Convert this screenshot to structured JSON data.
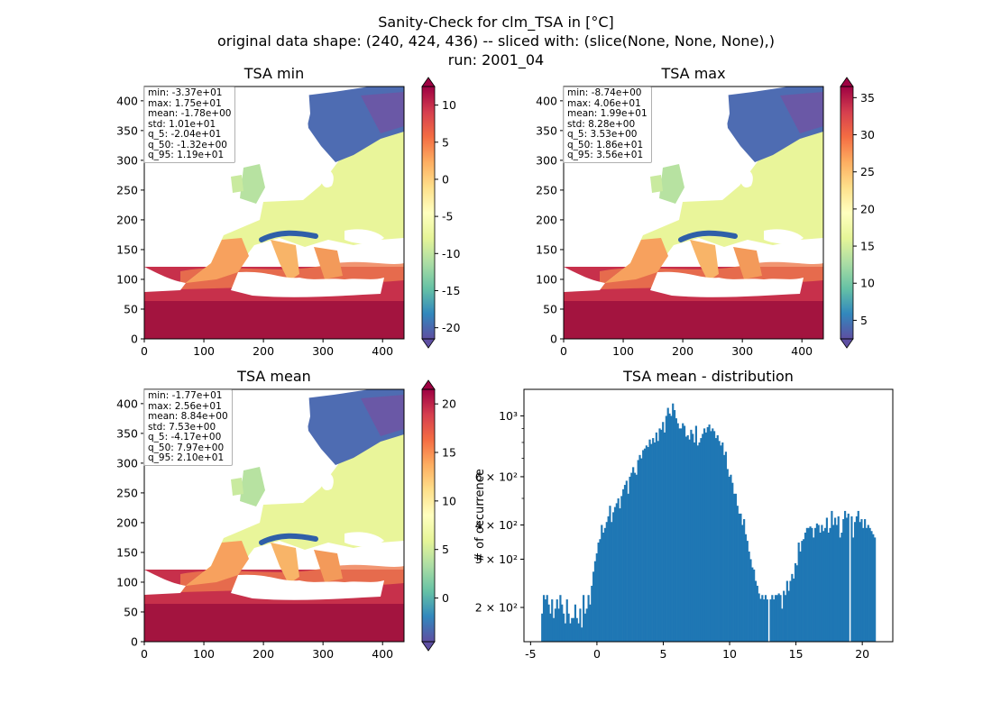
{
  "suptitle": {
    "line1": "Sanity-Check for clm_TSA in [°C]",
    "line2": "original data shape: (240, 424, 436) -- sliced with: (slice(None, None, None),)",
    "line3": "run: 2001_04"
  },
  "colormap": "Spectral_r",
  "chart_data": [
    {
      "type": "heatmap",
      "title": "TSA min",
      "xlim": [
        0,
        436
      ],
      "ylim": [
        0,
        424
      ],
      "xticks": [
        "0",
        "100",
        "200",
        "300",
        "400"
      ],
      "yticks": [
        "0",
        "50",
        "100",
        "150",
        "200",
        "250",
        "300",
        "350",
        "400"
      ],
      "colorbar": {
        "range": [
          -21.5,
          12.5
        ],
        "ticks": [
          "-20",
          "-15",
          "-10",
          "-5",
          "0",
          "5",
          "10"
        ]
      },
      "stats": [
        "min: -3.37e+01",
        "max: 1.75e+01",
        "mean: -1.78e+00",
        "std: 1.01e+01",
        "q_5: -2.04e+01",
        "q_50: -1.32e+00",
        "q_95: 1.19e+01"
      ]
    },
    {
      "type": "heatmap",
      "title": "TSA max",
      "xlim": [
        0,
        436
      ],
      "ylim": [
        0,
        424
      ],
      "xticks": [
        "0",
        "100",
        "200",
        "300",
        "400"
      ],
      "yticks": [
        "0",
        "50",
        "100",
        "150",
        "200",
        "250",
        "300",
        "350",
        "400"
      ],
      "colorbar": {
        "range": [
          2.5,
          36.5
        ],
        "ticks": [
          "5",
          "10",
          "15",
          "20",
          "25",
          "30",
          "35"
        ]
      },
      "stats": [
        "min: -8.74e+00",
        "max: 4.06e+01",
        "mean: 1.99e+01",
        "std: 8.28e+00",
        "q_5: 3.53e+00",
        "q_50: 1.86e+01",
        "q_95: 3.56e+01"
      ]
    },
    {
      "type": "heatmap",
      "title": "TSA mean",
      "xlim": [
        0,
        436
      ],
      "ylim": [
        0,
        424
      ],
      "xticks": [
        "0",
        "100",
        "200",
        "300",
        "400"
      ],
      "yticks": [
        "0",
        "50",
        "100",
        "150",
        "200",
        "250",
        "300",
        "350",
        "400"
      ],
      "colorbar": {
        "range": [
          -4.5,
          21.5
        ],
        "ticks": [
          "0",
          "5",
          "10",
          "15",
          "20"
        ]
      },
      "stats": [
        "min: -1.77e+01",
        "max: 2.56e+01",
        "mean: 8.84e+00",
        "std: 7.53e+00",
        "q_5: -4.17e+00",
        "q_50: 7.97e+00",
        "q_95: 2.10e+01"
      ]
    },
    {
      "type": "bar",
      "title": "TSA mean - distribution",
      "ylabel": "# of occurrence",
      "yscale": "log",
      "color": "#1f77b4",
      "xlim": [
        -5.5,
        22.3
      ],
      "ylim": [
        150,
        1250
      ],
      "xticks": [
        "-5",
        "0",
        "5",
        "10",
        "15",
        "20"
      ],
      "yticks": [
        "2 × 10²",
        "3 × 10²",
        "4 × 10²",
        "6 × 10²",
        "10³"
      ],
      "bin_range": [
        -4.2,
        21.0
      ],
      "counts": [
        190,
        222,
        214,
        222,
        205,
        190,
        214,
        183,
        198,
        214,
        198,
        222,
        205,
        190,
        175,
        214,
        190,
        175,
        183,
        183,
        205,
        183,
        175,
        198,
        169,
        222,
        190,
        198,
        222,
        205,
        240,
        270,
        295,
        315,
        345,
        355,
        400,
        375,
        390,
        410,
        430,
        470,
        410,
        445,
        465,
        480,
        500,
        460,
        510,
        540,
        560,
        580,
        520,
        600,
        620,
        650,
        620,
        610,
        690,
        720,
        700,
        750,
        760,
        780,
        770,
        820,
        790,
        830,
        800,
        870,
        810,
        900,
        890,
        950,
        870,
        1000,
        1070,
        1020,
        1000,
        1110,
        1050,
        980,
        940,
        900,
        900,
        940,
        920,
        840,
        850,
        820,
        890,
        860,
        800,
        920,
        780,
        800,
        830,
        860,
        900,
        870,
        910,
        930,
        880,
        900,
        880,
        830,
        850,
        810,
        780,
        800,
        720,
        740,
        640,
        600,
        610,
        570,
        520,
        520,
        470,
        440,
        440,
        400,
        420,
        370,
        350,
        320,
        300,
        280,
        275,
        250,
        240,
        225,
        215,
        222,
        214,
        222,
        214,
        222,
        214,
        222,
        214,
        222,
        222,
        225,
        222,
        198,
        230,
        222,
        250,
        230,
        250,
        265,
        255,
        290,
        285,
        345,
        320,
        350,
        355,
        375,
        390,
        390,
        395,
        390,
        360,
        390,
        405,
        400,
        375,
        400,
        380,
        390,
        425,
        375,
        390,
        450,
        400,
        425,
        400,
        430,
        360,
        375,
        420,
        450,
        425,
        440,
        425,
        430,
        360,
        410,
        430,
        450,
        410,
        420,
        390,
        420,
        390,
        400,
        390,
        380,
        370,
        360
      ],
      "gaps": [
        137,
        186
      ]
    }
  ]
}
